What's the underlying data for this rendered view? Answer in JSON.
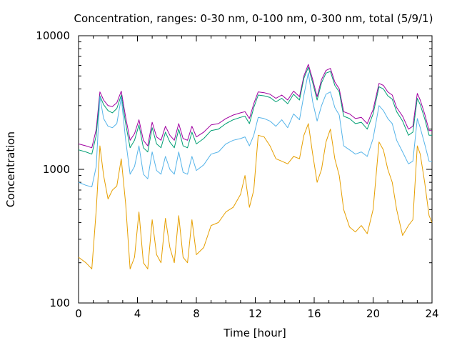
{
  "chart_data": {
    "type": "line",
    "title": "Concentration, ranges: 0-30 nm, 0-100 nm, 0-300 nm, total (5/9/1)",
    "xlabel": "Time [hour]",
    "ylabel": "Concentration",
    "xlim": [
      0,
      24
    ],
    "ylim": [
      100,
      10000
    ],
    "yscale": "log",
    "grid": false,
    "legend": "none",
    "x_ticks": [
      0,
      4,
      8,
      12,
      16,
      20,
      24
    ],
    "x_tick_labels": [
      "0",
      "4",
      "8",
      "12",
      "16",
      "20",
      "24"
    ],
    "y_ticks": [
      100,
      1000,
      10000
    ],
    "y_tick_labels": [
      "100",
      "1000",
      "10000"
    ],
    "x": [
      0,
      0.5,
      0.9,
      1.2,
      1.45,
      1.7,
      2.0,
      2.3,
      2.6,
      2.9,
      3.2,
      3.5,
      3.8,
      4.1,
      4.4,
      4.7,
      5.0,
      5.3,
      5.6,
      5.9,
      6.2,
      6.5,
      6.8,
      7.1,
      7.4,
      7.7,
      8.0,
      8.5,
      9.0,
      9.5,
      10.0,
      10.5,
      11.0,
      11.3,
      11.6,
      11.9,
      12.2,
      12.6,
      13.0,
      13.4,
      13.8,
      14.2,
      14.6,
      15.0,
      15.3,
      15.6,
      15.9,
      16.2,
      16.5,
      16.8,
      17.1,
      17.4,
      17.7,
      18.0,
      18.4,
      18.8,
      19.2,
      19.6,
      20.0,
      20.4,
      20.7,
      21.0,
      21.3,
      21.6,
      22.0,
      22.4,
      22.7,
      23.0,
      23.2,
      23.5,
      23.8,
      24.0
    ],
    "series": [
      {
        "color": "#a000a0",
        "values": [
          1550,
          1500,
          1450,
          2000,
          3800,
          3300,
          3000,
          2950,
          3150,
          3850,
          2450,
          1650,
          1850,
          2350,
          1650,
          1500,
          2250,
          1750,
          1650,
          2100,
          1800,
          1650,
          2200,
          1700,
          1650,
          2100,
          1750,
          1900,
          2150,
          2200,
          2400,
          2550,
          2650,
          2700,
          2400,
          3100,
          3800,
          3750,
          3650,
          3400,
          3600,
          3300,
          3850,
          3500,
          5000,
          6100,
          4700,
          3500,
          4700,
          5500,
          5700,
          4500,
          4000,
          2700,
          2600,
          2400,
          2450,
          2200,
          2800,
          4400,
          4250,
          3800,
          3600,
          2900,
          2500,
          2000,
          2100,
          3700,
          3300,
          2600,
          1950,
          1950
        ]
      },
      {
        "color": "#009e73",
        "values": [
          1400,
          1350,
          1300,
          1800,
          3550,
          3050,
          2750,
          2650,
          2850,
          3600,
          2200,
          1450,
          1650,
          2150,
          1450,
          1350,
          2050,
          1550,
          1450,
          1900,
          1600,
          1450,
          2000,
          1500,
          1450,
          1900,
          1550,
          1700,
          1950,
          2000,
          2200,
          2350,
          2450,
          2500,
          2200,
          2900,
          3600,
          3550,
          3450,
          3200,
          3400,
          3100,
          3650,
          3300,
          4800,
          5800,
          4450,
          3300,
          4450,
          5250,
          5400,
          4250,
          3800,
          2500,
          2400,
          2200,
          2250,
          2000,
          2600,
          4150,
          4000,
          3550,
          3350,
          2700,
          2300,
          1800,
          1900,
          3400,
          3050,
          2400,
          1800,
          1800
        ]
      },
      {
        "color": "#56b4e9",
        "values": [
          800,
          760,
          740,
          1050,
          3500,
          2400,
          2100,
          2050,
          2200,
          3450,
          1650,
          920,
          1050,
          1500,
          920,
          850,
          1350,
          980,
          920,
          1250,
          1000,
          920,
          1350,
          950,
          920,
          1250,
          980,
          1080,
          1300,
          1350,
          1550,
          1650,
          1700,
          1750,
          1500,
          1800,
          2450,
          2400,
          2300,
          2100,
          2350,
          2050,
          2600,
          2350,
          3600,
          5300,
          3200,
          2300,
          3000,
          3650,
          3800,
          2900,
          2550,
          1500,
          1400,
          1300,
          1350,
          1250,
          1700,
          3000,
          2750,
          2400,
          2200,
          1650,
          1350,
          1100,
          1150,
          2400,
          2050,
          1550,
          1150,
          1150
        ]
      },
      {
        "color": "#e69f00",
        "values": [
          220,
          200,
          180,
          500,
          1500,
          900,
          600,
          700,
          750,
          1200,
          550,
          180,
          220,
          480,
          200,
          180,
          420,
          230,
          200,
          430,
          260,
          200,
          450,
          220,
          200,
          420,
          230,
          260,
          380,
          400,
          480,
          520,
          650,
          900,
          520,
          700,
          1800,
          1750,
          1500,
          1200,
          1150,
          1100,
          1250,
          1200,
          1800,
          2200,
          1300,
          800,
          1000,
          1600,
          2000,
          1200,
          900,
          500,
          370,
          340,
          380,
          330,
          500,
          1600,
          1400,
          1000,
          800,
          500,
          320,
          380,
          420,
          1500,
          1300,
          800,
          450,
          400
        ]
      }
    ]
  }
}
